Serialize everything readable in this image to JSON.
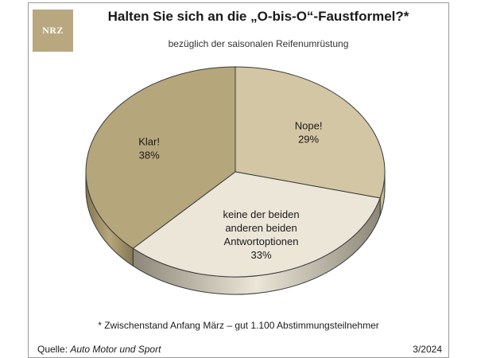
{
  "header": {
    "logo_text": "NRZ",
    "title": "Halten Sie sich an die „O-bis-O“-Faustformel?*",
    "subtitle": "bezüglich der saisonalen Reifenumrüstung"
  },
  "footer": {
    "footnote": "* Zwischenstand Anfang März – gut 1.100 Abstimmungsteilnehmer",
    "source_label": "Quelle:",
    "source_name": "Auto Motor und Sport",
    "date": "3/2024"
  },
  "chart_data": {
    "type": "pie",
    "title": "Halten Sie sich an die „O-bis-O“-Faustformel?*",
    "subtitle": "bezüglich der saisonalen Reifenumrüstung",
    "slices": [
      {
        "label": "Nope!",
        "value": 29,
        "value_label": "29%",
        "color": "#d3c6a4",
        "dark": "#a89770"
      },
      {
        "label": "keine der beiden anderen beiden Antwortoptionen",
        "label_lines": [
          "keine der beiden",
          "anderen beiden",
          "Antwortoptionen"
        ],
        "value": 33,
        "value_label": "33%",
        "color": "#ebe6d8",
        "dark": "#8c8778"
      },
      {
        "label": "Klar!",
        "value": 38,
        "value_label": "38%",
        "color": "#b6a67c",
        "dark": "#857752"
      }
    ]
  }
}
